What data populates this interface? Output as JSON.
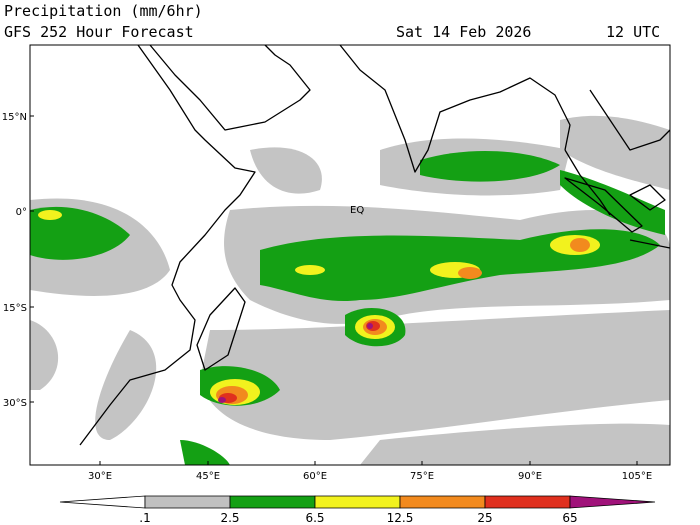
{
  "header": {
    "title": "Precipitation (mm/6hr)",
    "subtitle": "GFS 252 Hour Forecast",
    "date": "Sat 14 Feb 2026",
    "time": "12 UTC"
  },
  "map": {
    "lat_labels": [
      "15°N",
      "0°",
      "15°S",
      "30°S"
    ],
    "lon_labels": [
      "30°E",
      "45°E",
      "60°E",
      "75°E",
      "90°E",
      "105°E"
    ],
    "annotation": "EQ"
  },
  "colorbar": {
    "levels": [
      {
        "value": 0.1,
        "label": ".1"
      },
      2.5,
      6.5,
      12.5,
      25,
      65
    ],
    "colors": [
      "#ffffff",
      "#c0c0c0",
      "#14a014",
      "#f2f21e",
      "#f28a1e",
      "#e0301e",
      "#a0127a"
    ]
  }
}
